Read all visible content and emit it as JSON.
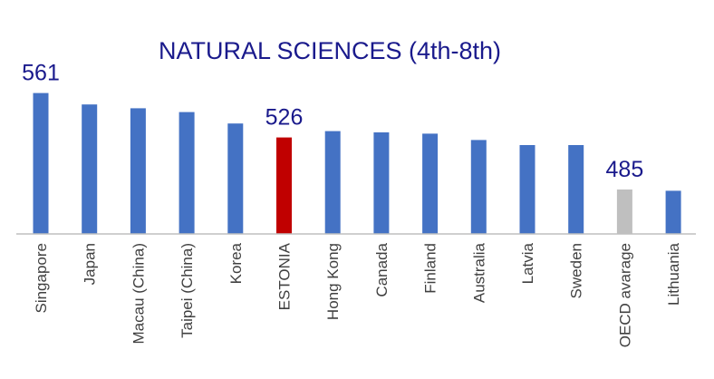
{
  "chart_data": {
    "type": "bar",
    "title": "NATURAL SCIENCES (4th-8th)",
    "xlabel": "",
    "ylabel": "",
    "categories": [
      "Singapore",
      "Japan",
      "Macau (China)",
      "Taipei (China)",
      "Korea",
      "ESTONIA",
      "Hong Kong",
      "Canada",
      "Finland",
      "Australia",
      "Latvia",
      "Sweden",
      "OECD avarage",
      "Lithuania"
    ],
    "values": [
      561,
      552,
      549,
      546,
      537,
      526,
      531,
      530,
      529,
      524,
      520,
      520,
      485,
      484
    ],
    "data_labels": [
      {
        "category": "Singapore",
        "text": "561"
      },
      {
        "category": "ESTONIA",
        "text": "526"
      },
      {
        "category": "OECD avarage",
        "text": "485"
      }
    ],
    "colors": {
      "default": "#4472c4",
      "highlight": "#c00000",
      "average": "#bfbfbf",
      "title": "#1a1a8c",
      "tick": "#404040",
      "axis": "#bfbfbf"
    },
    "bar_colors": [
      "default",
      "default",
      "default",
      "default",
      "default",
      "highlight",
      "default",
      "default",
      "default",
      "default",
      "default",
      "default",
      "average",
      "default"
    ],
    "legend": "none",
    "grid": false
  }
}
